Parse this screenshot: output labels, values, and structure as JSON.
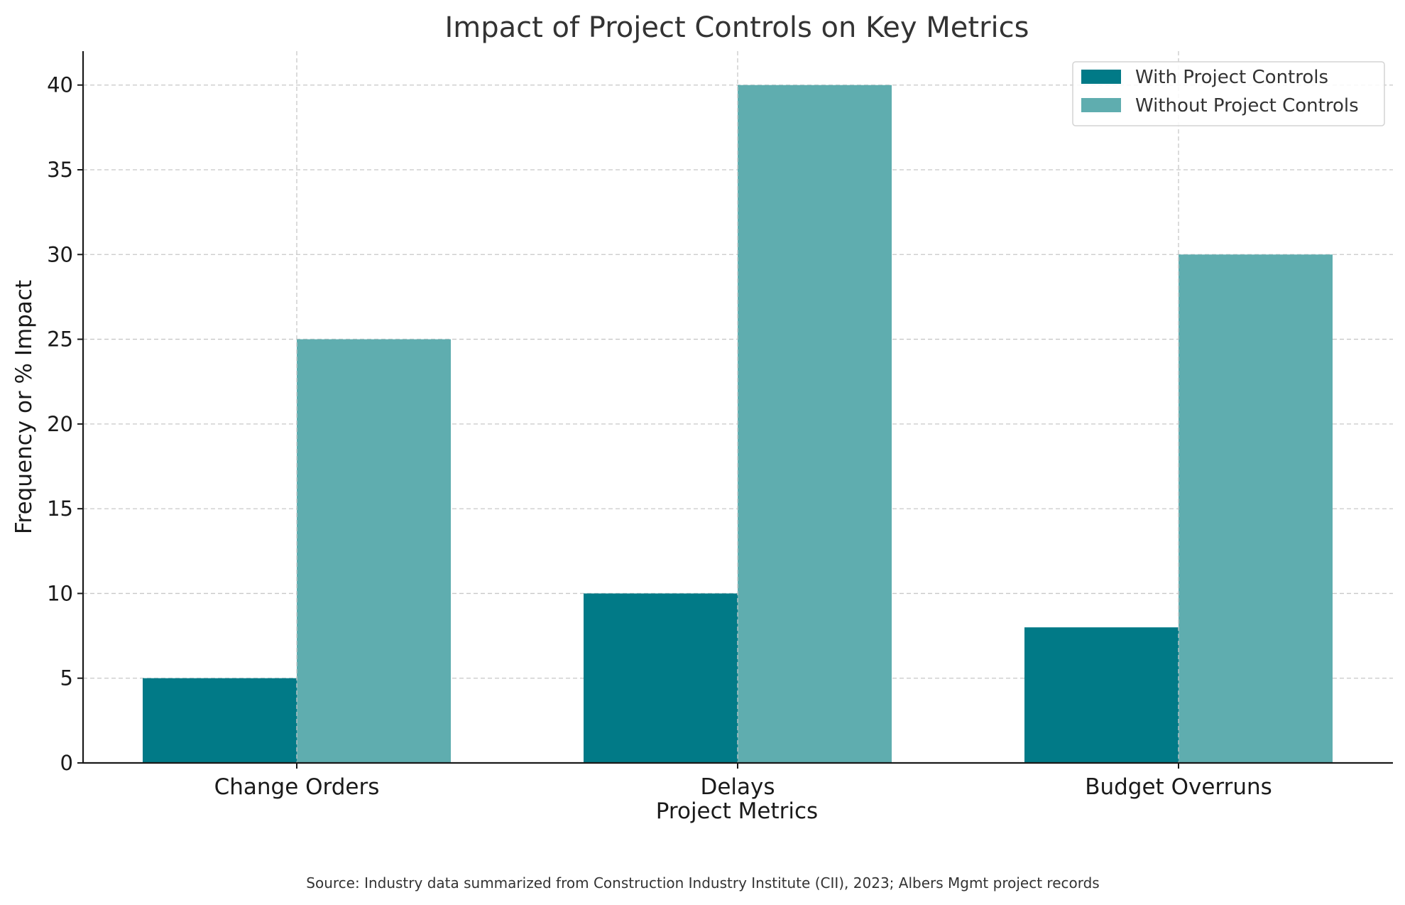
{
  "chart_data": {
    "type": "bar",
    "title": "Impact of Project Controls on Key Metrics",
    "xlabel": "Project Metrics",
    "ylabel": "Frequency or % Impact",
    "categories": [
      "Change Orders",
      "Delays",
      "Budget Overruns"
    ],
    "series": [
      {
        "name": "With Project Controls",
        "color": "#017a87",
        "values": [
          5,
          10,
          8
        ]
      },
      {
        "name": "Without Project Controls",
        "color": "#5fadaf",
        "values": [
          25,
          40,
          30
        ]
      }
    ],
    "ylim": [
      0,
      42
    ],
    "yticks": [
      0,
      5,
      10,
      15,
      20,
      25,
      30,
      35,
      40
    ],
    "grid": true,
    "legend_position": "top-right",
    "source_note": "Source: Industry data summarized from Construction Industry Institute (CII), 2023; Albers Mgmt project records"
  }
}
